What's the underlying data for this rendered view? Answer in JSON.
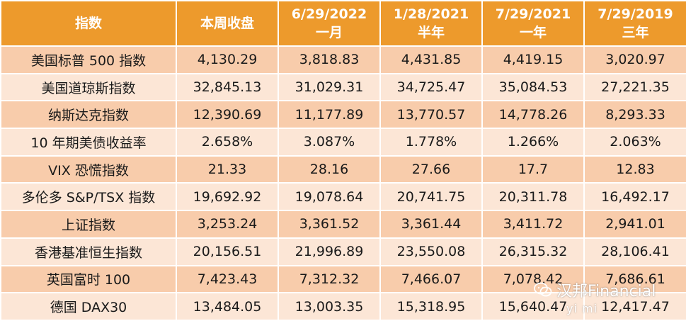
{
  "headers": [
    {
      "line1": "指数",
      "line2": ""
    },
    {
      "line1": "本周收盘",
      "line2": ""
    },
    {
      "line1": "6/29/2022",
      "line2": "一月"
    },
    {
      "line1": "1/28/2021",
      "line2": "半年"
    },
    {
      "line1": "7/29/2021",
      "line2": "一年"
    },
    {
      "line1": "7/29/2019",
      "line2": "三年"
    }
  ],
  "rows": [
    [
      "美国标普 500 指数",
      "4,130.29",
      "3,818.83",
      "4,431.85",
      "4,419.15",
      "3,020.97"
    ],
    [
      "美国道琼斯指数",
      "32,845.13",
      "31,029.31",
      "34,725.47",
      "35,084.53",
      "27,221.35"
    ],
    [
      "纳斯达克指数",
      "12,390.69",
      "11,177.89",
      "13,770.57",
      "14,778.26",
      "8,293.33"
    ],
    [
      "10 年期美债收益率",
      "2.658%",
      "3.087%",
      "1.778%",
      "1.266%",
      "2.063%"
    ],
    [
      "VIX 恐慌指数",
      "21.33",
      "28.16",
      "27.66",
      "17.7",
      "12.83"
    ],
    [
      "多伦多 S&P/TSX 指数",
      "19,692.92",
      "19,078.64",
      "20,741.75",
      "20,311.78",
      "16,492.17"
    ],
    [
      "上证指数",
      "3,253.24",
      "3,361.52",
      "3,361.44",
      "3,411.72",
      "2,941.01"
    ],
    [
      "香港基准恒生指数",
      "20,156.51",
      "21,996.89",
      "23,550.08",
      "26,315.32",
      "28,106.41"
    ],
    [
      "英国富时 100",
      "7,423.43",
      "7,312.32",
      "7,466.07",
      "7,078.42",
      "7,686.61"
    ],
    [
      "德国 DAX30",
      "13,484.05",
      "13,003.35",
      "15,318.95",
      "15,640.47",
      "12,417.47"
    ]
  ],
  "watermark": {
    "icon": "wechat-icon",
    "text": "汉邦Financial",
    "subtext": "yi mi"
  },
  "colors": {
    "header_bg": "#ed9a2c",
    "row_dark": "#f8ccab",
    "row_light": "#fce6d6"
  }
}
